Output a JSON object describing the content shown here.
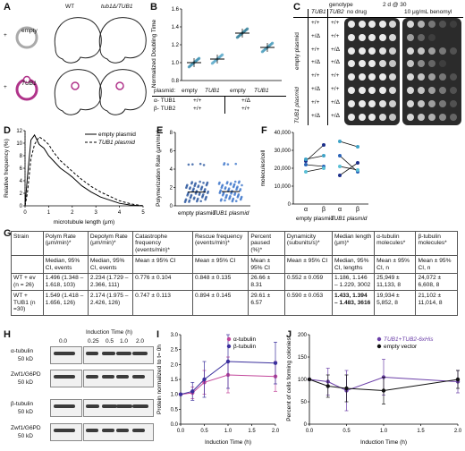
{
  "panels": {
    "A": "A",
    "B": "B",
    "C": "C",
    "D": "D",
    "E": "E",
    "F": "F",
    "G": "G",
    "H": "H",
    "I": "I",
    "J": "J"
  },
  "panelA": {
    "wt": "WT",
    "mut": "tub1Δ/TUB1",
    "row1": "empty",
    "row2": "TUB1",
    "plus": "+"
  },
  "panelB": {
    "ylabel": "Normalized Doubling Time",
    "yticks": [
      "0.8",
      "1.0",
      "1.2",
      "1.4",
      "1.6"
    ],
    "plasmid_label": "plasmid:",
    "groups": [
      "empty",
      "TUB1",
      "empty",
      "TUB1"
    ],
    "row_alpha": "α- TUB1",
    "row_beta": "β- TUB2",
    "alpha_vals": [
      "+/+",
      "+/Δ"
    ],
    "beta_vals": [
      "+/+",
      "+/+"
    ],
    "chart_data": {
      "type": "scatter",
      "categories": [
        "empty",
        "TUB1",
        "empty",
        "TUB1"
      ],
      "values": [
        1.0,
        1.04,
        1.33,
        1.17
      ],
      "ylim": [
        0.8,
        1.6
      ]
    }
  },
  "panelC": {
    "title": "2 d @ 30",
    "col_genotype": "genotype",
    "col_tub1": "TUB1",
    "col_tub2": "TUB2",
    "cond1": "no drug",
    "cond2": "10 μg/mL benomyl",
    "grp1": "empty plasmid",
    "grp2": "TUB1 plasmid",
    "rows": [
      [
        "+/+",
        "+/+"
      ],
      [
        "+/Δ",
        "+/+"
      ],
      [
        "+/+",
        "+/Δ"
      ],
      [
        "+/Δ",
        "+/Δ"
      ],
      [
        "+/+",
        "+/+"
      ],
      [
        "+/Δ",
        "+/+"
      ],
      [
        "+/+",
        "+/Δ"
      ],
      [
        "+/Δ",
        "+/Δ"
      ]
    ]
  },
  "panelD": {
    "ylabel": "Relative frequency (%)",
    "xlabel": "microtubule length (μm)",
    "yticks": [
      "0",
      "2",
      "4",
      "6",
      "8",
      "10",
      "12"
    ],
    "xticks": [
      "0",
      "1",
      "2",
      "3",
      "4",
      "5"
    ],
    "legend": [
      "empty plasmid",
      "TUB1 plasmid"
    ],
    "chart_data": {
      "type": "line",
      "x": [
        0.0,
        0.1,
        0.25,
        0.4,
        0.6,
        0.8,
        1.0,
        1.2,
        1.5,
        1.8,
        2.0,
        2.4,
        2.8,
        3.2,
        3.6,
        4.0,
        4.5,
        5.0
      ],
      "series": [
        {
          "name": "empty plasmid",
          "values": [
            0,
            4.5,
            10.5,
            11.3,
            9.8,
            9.2,
            8.0,
            7.2,
            6.0,
            5.2,
            4.6,
            3.2,
            2.2,
            1.4,
            0.9,
            0.4,
            0.1,
            0
          ]
        },
        {
          "name": "TUB1 plasmid",
          "values": [
            0,
            2.0,
            7.5,
            9.8,
            11.0,
            10.5,
            9.8,
            8.6,
            7.2,
            6.2,
            5.5,
            4.2,
            3.1,
            2.2,
            1.5,
            0.8,
            0.3,
            0
          ]
        }
      ],
      "xlim": [
        0,
        5
      ],
      "ylim": [
        0,
        12
      ]
    }
  },
  "panelE": {
    "ylabel": "Polymerization Rate (μm/min)",
    "yticks": [
      "0",
      "2",
      "4",
      "6",
      "8"
    ],
    "cats": [
      "empty plasmid",
      "TUB1 plasmid"
    ],
    "chart_data": {
      "type": "scatter",
      "categories": [
        "empty plasmid",
        "TUB1 plasmid"
      ],
      "values": [
        1.496,
        1.549
      ],
      "ylim": [
        0,
        8
      ]
    }
  },
  "panelF": {
    "ylabel": "molecules/cell",
    "yticks": [
      "0",
      "10,000",
      "20,000",
      "30,000",
      "40,000"
    ],
    "xcats": [
      "α",
      "β",
      "α",
      "β"
    ],
    "groups": [
      "empty plasmid",
      "TUB1 plasmid"
    ],
    "chart_data": {
      "type": "line",
      "categories": [
        "α",
        "β"
      ],
      "series": [
        {
          "name": "",
          "values": [
            24000,
            33000
          ]
        },
        {
          "name": "",
          "values": [
            22000,
            21000
          ]
        },
        {
          "name": "",
          "values": [
            25000,
            27000
          ]
        },
        {
          "name": "",
          "values": [
            18000,
            20000
          ]
        },
        {
          "name": "",
          "values": [
            16000,
            23000
          ]
        },
        {
          "name": "",
          "values": [
            27000,
            18000
          ]
        },
        {
          "name": "",
          "values": [
            35000,
            32000
          ]
        },
        {
          "name": "",
          "values": [
            21000,
            19000
          ]
        }
      ],
      "ylim": [
        0,
        40000
      ]
    }
  },
  "table": {
    "headers": [
      "Strain",
      "Polym Rate (μm/min)*",
      "Depolym Rate (μm/min)*",
      "Catastrophe frequency (events/min)*",
      "Rescue frequency (events/min)*",
      "Percent paused (%)*",
      "Dynamicity (subunits/s)*",
      "Median length (μm)*",
      "α-tubulin molecules*",
      "β-tubulin molecules*"
    ],
    "subheaders": [
      "",
      "Median, 95% CI, events",
      "Median, 95% CI, events",
      "Mean ± 95% CI",
      "Mean ± 95% CI",
      "Mean ± 95% CI",
      "Mean ± 95% CI",
      "Median, 95% CI, lengths",
      "Mean ± 95% CI, n",
      "Mean ± 95% CI, n"
    ],
    "rows": [
      [
        "WT + ev (n = 26)",
        "1.496 (1.348 – 1.618, 103)",
        "2.234 (1.729 – 2.366, 111)",
        "0.776 ± 0.104",
        "0.848 ± 0.135",
        "26.66 ± 8.31",
        "0.552 ± 0.059",
        "1.186, 1.146 – 1.229, 3002",
        "25,949 ± 11,133, 8",
        "24,072 ± 6,608, 8"
      ],
      [
        "WT + TUB1 (n =30)",
        "1.549 (1.418 – 1.656, 126)",
        "2.174 (1.975 – 2.426, 126)",
        "0.747 ± 0.113",
        "0.894 ± 0.145",
        "29.61 ± 6.57",
        "0.590 ± 0.053",
        "1.433, 1.394 – 1.483, 3616",
        "19,934 ± 5,852, 8",
        "21,102 ± 11,014, 8"
      ]
    ]
  },
  "panelH": {
    "title": "Induction Time (h)",
    "times": [
      "0.0",
      "0.25",
      "0.5",
      "1.0",
      "2.0"
    ],
    "blot1": "α-tubulin",
    "blot2": "Zwf1/G6PD",
    "blot3": "β-tubulin",
    "blot4": "Zwf1/G6PD",
    "kd1": "50 kD",
    "kd2": "50 kD",
    "kd3": "50 kD",
    "kd4": "50 kD"
  },
  "panelI": {
    "ylabel": "Protein normalized to t= 0h",
    "xlabel": "Induction Time (h)",
    "yticks": [
      "0.0",
      "0.5",
      "1.0",
      "1.5",
      "2.0",
      "2.5",
      "3.0"
    ],
    "xticks": [
      "0.0",
      "0.5",
      "1.0",
      "1.5",
      "2.0"
    ],
    "legend": [
      "α-tubulin",
      "β-tubulin"
    ],
    "colors": {
      "alpha": "#c2469a",
      "beta": "#3a2f9c"
    },
    "chart_data": {
      "type": "line",
      "x": [
        0.0,
        0.25,
        0.5,
        1.0,
        2.0
      ],
      "series": [
        {
          "name": "α-tubulin",
          "values": [
            1.0,
            1.05,
            1.4,
            1.65,
            1.6
          ]
        },
        {
          "name": "β-tubulin",
          "values": [
            1.0,
            1.1,
            1.5,
            2.1,
            2.05
          ]
        }
      ],
      "xlim": [
        0,
        2
      ],
      "ylim": [
        0,
        3
      ]
    }
  },
  "panelJ": {
    "ylabel": "Percent of cells forming colonies",
    "xlabel": "Induction Time (h)",
    "yticks": [
      "0",
      "50",
      "100",
      "150",
      "200"
    ],
    "xticks": [
      "0.0",
      "0.5",
      "1.0",
      "1.5",
      "2.0"
    ],
    "legend": [
      "TUB1+TUB2-6xHis",
      "empty vector"
    ],
    "colors": {
      "tub": "#6b3fa8",
      "ev": "#111111"
    },
    "chart_data": {
      "type": "line",
      "x": [
        0.0,
        0.25,
        0.5,
        1.0,
        2.0
      ],
      "series": [
        {
          "name": "TUB1+TUB2-6xHis",
          "values": [
            100,
            95,
            75,
            105,
            95
          ]
        },
        {
          "name": "empty vector",
          "values": [
            100,
            85,
            80,
            75,
            100
          ]
        }
      ],
      "xlim": [
        0,
        2
      ],
      "ylim": [
        0,
        200
      ]
    }
  }
}
